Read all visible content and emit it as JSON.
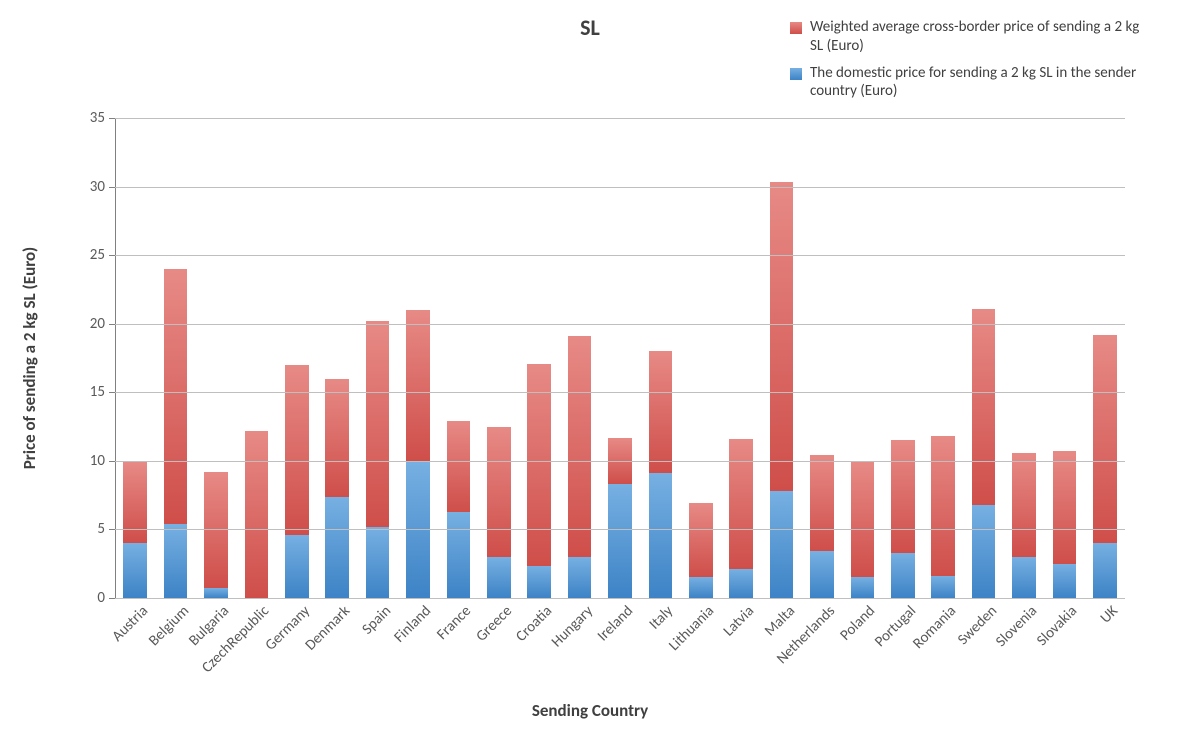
{
  "chart": {
    "type": "stacked-bar",
    "title": "SL",
    "title_fontsize": 22,
    "title_fontweight": "bold",
    "background_color": "#ffffff",
    "grid_color": "#bfbfbf",
    "axis_line_color": "#808080",
    "tick_label_color": "#595959",
    "tick_label_fontsize": 15,
    "axis_title_color": "#404040",
    "axis_title_fontsize": 17,
    "ylabel": "Price of sending a 2 kg SL (Euro)",
    "xlabel": "Sending Country",
    "ylim": [
      0,
      35
    ],
    "ytick_step": 5,
    "bar_width_ratio": 0.58,
    "x_label_rotation_deg": -45,
    "categories": [
      "Austria",
      "Belgium",
      "Bulgaria",
      "CzechRepublic",
      "Germany",
      "Denmark",
      "Spain",
      "Finland",
      "France",
      "Greece",
      "Croatia",
      "Hungary",
      "Ireland",
      "Italy",
      "Lithuania",
      "Latvia",
      "Malta",
      "Netherlands",
      "Poland",
      "Portugal",
      "Romania",
      "Sweden",
      "Slovenia",
      "Slovakia",
      "UK"
    ],
    "series": [
      {
        "id": "domestic",
        "label": "The domestic price for sending a 2 kg SL in the sender country (Euro)",
        "fill_color_top": "#77b0e2",
        "fill_color_bottom": "#3d83c6",
        "values": [
          4.0,
          5.4,
          0.7,
          0.0,
          4.6,
          7.4,
          5.2,
          10.0,
          6.3,
          3.0,
          2.3,
          3.0,
          8.3,
          9.1,
          1.5,
          2.1,
          7.8,
          3.4,
          1.5,
          3.3,
          1.6,
          6.8,
          3.0,
          2.5,
          4.0
        ]
      },
      {
        "id": "crossborder",
        "label": "Weighted average cross-border price of sending a 2 kg SL (Euro)",
        "fill_color_top": "#e78a86",
        "fill_color_bottom": "#cf4e4a",
        "values": [
          5.9,
          18.6,
          8.5,
          12.2,
          12.4,
          8.6,
          15.0,
          11.0,
          6.6,
          9.5,
          14.8,
          16.1,
          3.4,
          8.9,
          5.4,
          9.5,
          22.5,
          7.0,
          8.4,
          8.2,
          10.2,
          14.3,
          7.6,
          8.2,
          15.2
        ]
      }
    ],
    "legend": {
      "position": "top-right",
      "order": [
        "crossborder",
        "domestic"
      ],
      "fontsize": 15
    }
  }
}
